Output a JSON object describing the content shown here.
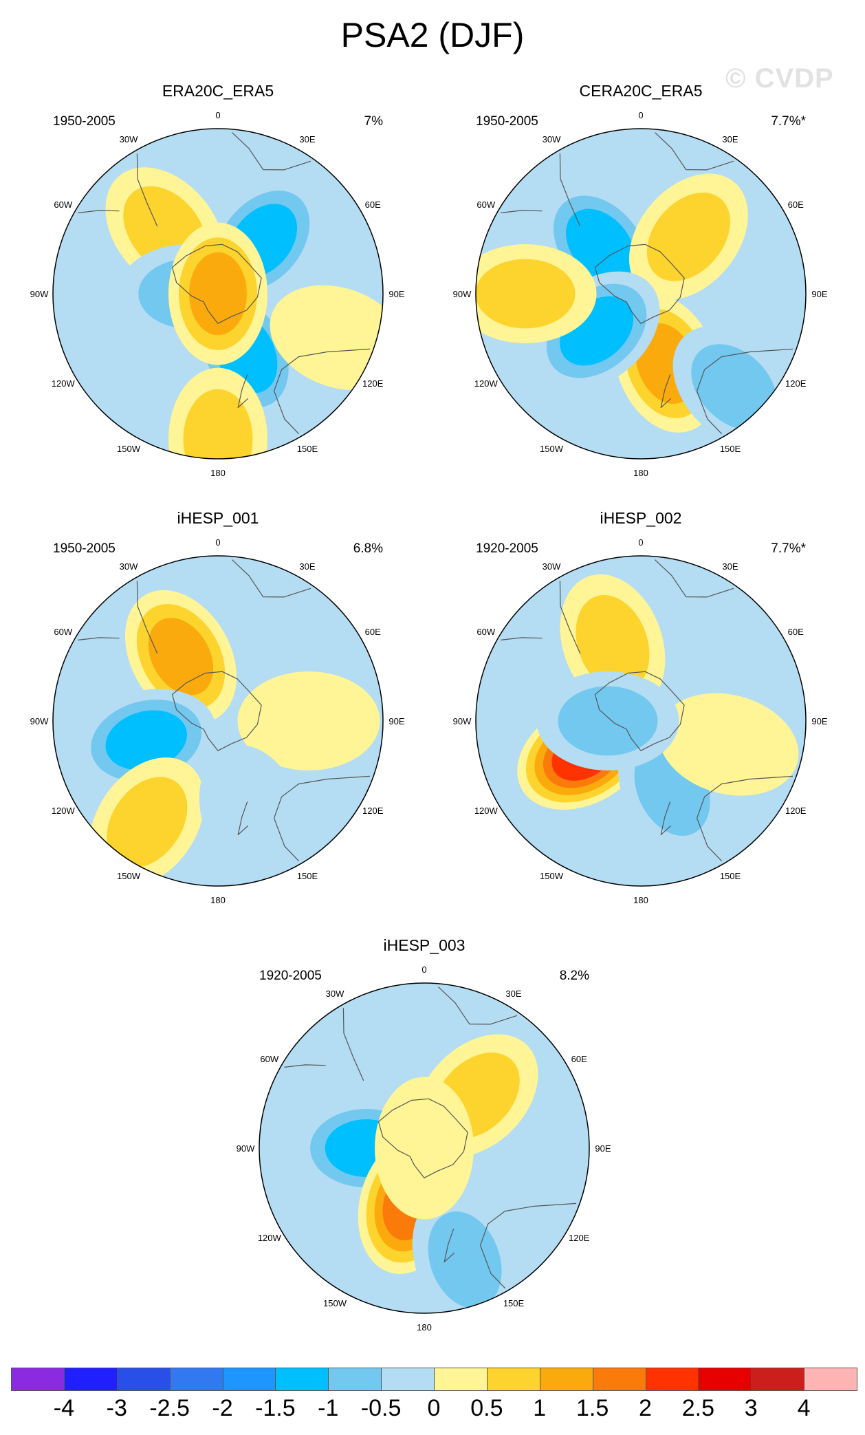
{
  "title": "PSA2 (DJF)",
  "watermark": "© CVDP",
  "longitude_labels": [
    "0",
    "30E",
    "60E",
    "90E",
    "120E",
    "150E",
    "180",
    "150W",
    "120W",
    "90W",
    "60W",
    "30W"
  ],
  "panels": [
    {
      "title": "ERA20C_ERA5",
      "period": "1950-2005",
      "percent": "7%",
      "anomalies": [
        {
          "lon": 40,
          "r": 0.42,
          "value": -1.6
        },
        {
          "lon": 155,
          "r": 0.4,
          "value": -1.7
        },
        {
          "lon": 320,
          "r": 0.5,
          "value": 0.8
        },
        {
          "lon": 110,
          "r": 0.78,
          "value": 0.7
        },
        {
          "lon": 270,
          "r": 0.18,
          "value": -0.8
        },
        {
          "lon": 180,
          "r": 0.88,
          "value": 0.8
        },
        {
          "lon": 0,
          "r": 0.0,
          "value": 1.3
        }
      ]
    },
    {
      "title": "CERA20C_ERA5",
      "period": "1950-2005",
      "percent": "7.7%*",
      "anomalies": [
        {
          "lon": 320,
          "r": 0.38,
          "value": -1.4
        },
        {
          "lon": 40,
          "r": 0.45,
          "value": 1.0
        },
        {
          "lon": 160,
          "r": 0.45,
          "value": 1.3
        },
        {
          "lon": 230,
          "r": 0.35,
          "value": -1.6
        },
        {
          "lon": 270,
          "r": 0.7,
          "value": 0.9
        },
        {
          "lon": 135,
          "r": 0.8,
          "value": -0.8
        }
      ]
    },
    {
      "title": "iHESP_001",
      "period": "1950-2005",
      "percent": "6.8%",
      "anomalies": [
        {
          "lon": 330,
          "r": 0.45,
          "value": 1.3
        },
        {
          "lon": 255,
          "r": 0.45,
          "value": -1.4
        },
        {
          "lon": 90,
          "r": 0.55,
          "value": 0.7
        },
        {
          "lon": 215,
          "r": 0.75,
          "value": 0.8
        },
        {
          "lon": 160,
          "r": 0.6,
          "value": -0.6
        }
      ]
    },
    {
      "title": "iHESP_002",
      "period": "1920-2005",
      "percent": "7.7%*",
      "anomalies": [
        {
          "lon": 240,
          "r": 0.4,
          "value": 2.6
        },
        {
          "lon": 155,
          "r": 0.45,
          "value": -1.0
        },
        {
          "lon": 340,
          "r": 0.5,
          "value": 0.8
        },
        {
          "lon": 105,
          "r": 0.55,
          "value": 0.7
        },
        {
          "lon": 270,
          "r": 0.2,
          "value": -0.8
        }
      ]
    },
    {
      "title": "iHESP_003",
      "period": "1920-2005",
      "percent": "8.2%",
      "anomalies": [
        {
          "lon": 270,
          "r": 0.35,
          "value": -1.6
        },
        {
          "lon": 195,
          "r": 0.35,
          "value": 2.0
        },
        {
          "lon": 45,
          "r": 0.45,
          "value": 0.9
        },
        {
          "lon": 160,
          "r": 0.72,
          "value": -1.0
        },
        {
          "lon": 0,
          "r": 0.0,
          "value": 0.3
        }
      ]
    }
  ],
  "colorbar": {
    "labels": [
      "-4",
      "-3",
      "-2.5",
      "-2",
      "-1.5",
      "-1",
      "-0.5",
      "0",
      "0.5",
      "1",
      "1.5",
      "2",
      "2.5",
      "3",
      "4"
    ],
    "colors": [
      "#8a2be2",
      "#1f1fff",
      "#2a4fe8",
      "#3278f0",
      "#1e96ff",
      "#00bfff",
      "#73c8f0",
      "#b4dcf2",
      "#fff596",
      "#fdd32e",
      "#fbaa0d",
      "#fa7a0a",
      "#ff3200",
      "#e60000",
      "#cd1e1e",
      "#ffb4b4"
    ]
  }
}
